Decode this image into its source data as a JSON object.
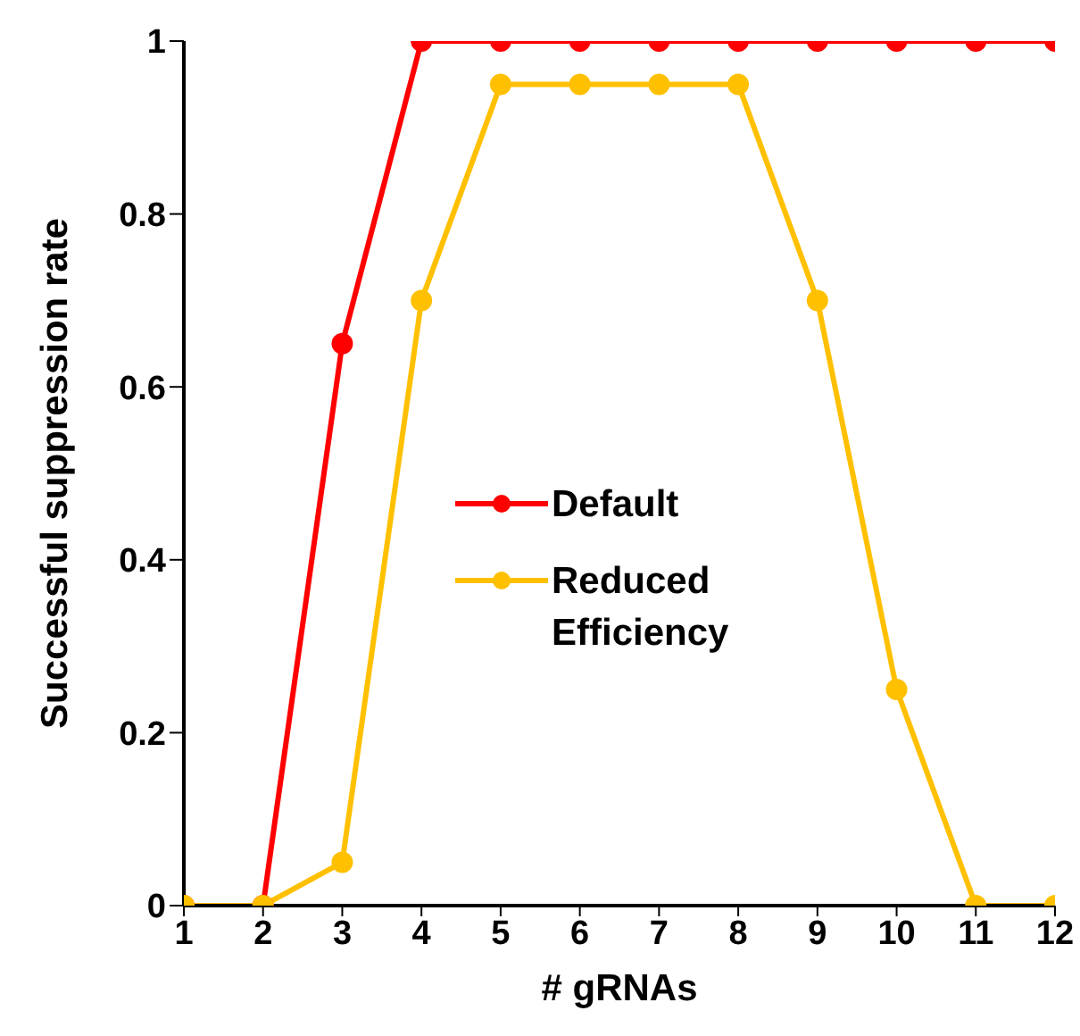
{
  "chart_data": {
    "type": "line",
    "xlabel": "# gRNAs",
    "ylabel": "Successful suppression rate",
    "x": [
      1,
      2,
      3,
      4,
      5,
      6,
      7,
      8,
      9,
      10,
      11,
      12
    ],
    "series": [
      {
        "name": "Default",
        "color": "#ff0000",
        "values": [
          0,
          0,
          0.65,
          1,
          1,
          1,
          1,
          1,
          1,
          1,
          1,
          1
        ]
      },
      {
        "name": "Reduced Efficiency",
        "color": "#ffc000",
        "values": [
          0,
          0,
          0.05,
          0.7,
          0.95,
          0.95,
          0.95,
          0.95,
          0.7,
          0.25,
          0,
          0
        ]
      }
    ],
    "xlim": [
      1,
      12
    ],
    "xticks": [
      1,
      2,
      3,
      4,
      5,
      6,
      7,
      8,
      9,
      10,
      11,
      12
    ],
    "ylim": [
      0,
      1
    ],
    "yticks": [
      0,
      0.2,
      0.4,
      0.6,
      0.8,
      1
    ],
    "grid": false,
    "legend": "center",
    "marker": "circle",
    "line_style": "solid"
  }
}
